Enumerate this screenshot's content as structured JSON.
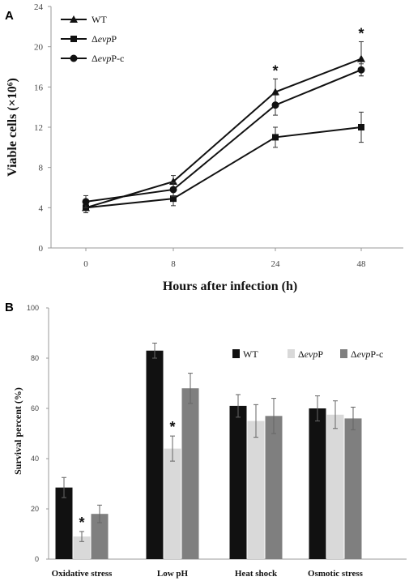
{
  "chart_data": [
    {
      "panel": "A",
      "type": "line",
      "categories": [
        "0",
        "8",
        "24",
        "48"
      ],
      "xlabel": "Hours after infection (h)",
      "ylabel": "Viable cells (×10⁶)",
      "ylim": [
        0,
        24
      ],
      "yticks": [
        "0",
        "4",
        "8",
        "12",
        "16",
        "20",
        "24"
      ],
      "grid": false,
      "legend_position": "top-left",
      "series": [
        {
          "name": "WT",
          "marker": "triangle",
          "values": [
            4.0,
            6.6,
            15.5,
            18.8
          ],
          "errors": [
            0.5,
            0.6,
            1.3,
            1.7
          ]
        },
        {
          "name": "ΔevpP",
          "marker": "square",
          "values": [
            4.0,
            4.9,
            11.0,
            12.0
          ],
          "errors": [
            0.5,
            0.7,
            1.0,
            1.5
          ]
        },
        {
          "name": "ΔevpP-c",
          "marker": "circle",
          "values": [
            4.6,
            5.8,
            14.2,
            17.7
          ],
          "errors": [
            0.6,
            0.7,
            1.0,
            0.6
          ]
        }
      ],
      "annotations": [
        {
          "category": "24",
          "text": "*"
        },
        {
          "category": "48",
          "text": "*"
        }
      ]
    },
    {
      "panel": "B",
      "type": "bar",
      "categories": [
        "Oxidative stress",
        "Low pH",
        "Heat shock",
        "Osmotic stress"
      ],
      "xlabel": "",
      "ylabel": "Survival percent (%)",
      "ylim": [
        0,
        100
      ],
      "yticks": [
        "0",
        "20",
        "40",
        "60",
        "80",
        "100"
      ],
      "grid": false,
      "legend_position": "top-right",
      "series": [
        {
          "name": "WT",
          "color": "#111111",
          "values": [
            28.5,
            83.0,
            61.0,
            60.0
          ],
          "errors": [
            4.0,
            3.0,
            4.5,
            5.0
          ]
        },
        {
          "name": "ΔevpP",
          "color": "#d9d9d9",
          "values": [
            9.0,
            44.0,
            55.0,
            57.5
          ],
          "errors": [
            2.0,
            5.0,
            6.5,
            5.5
          ]
        },
        {
          "name": "ΔevpP-c",
          "color": "#7f7f7f",
          "values": [
            18.0,
            68.0,
            57.0,
            56.0
          ],
          "errors": [
            3.5,
            6.0,
            7.0,
            4.5
          ]
        }
      ],
      "annotations": [
        {
          "category": "Oxidative stress",
          "series": "ΔevpP",
          "text": "*"
        },
        {
          "category": "Low pH",
          "series": "ΔevpP",
          "text": "*"
        }
      ]
    }
  ]
}
